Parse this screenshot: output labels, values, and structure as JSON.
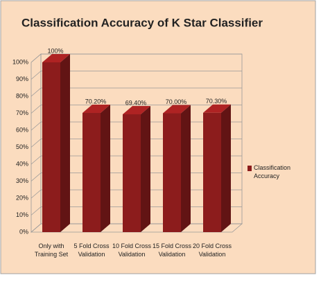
{
  "chart_data": {
    "type": "bar3d",
    "title": "Classification Accuracy of K Star Classifier",
    "categories": [
      "Only with Training Set",
      "5 Fold Cross Validation",
      "10 Fold Cross Validation",
      "15 Fold Cross Validation",
      "20 Fold Cross Validation"
    ],
    "series": [
      {
        "name": "Classification Accuracy",
        "color": "#8c1c1c",
        "values": [
          100,
          70.2,
          69.4,
          70,
          70.3
        ],
        "value_labels": [
          "100%",
          "70.20%",
          "69.40%",
          "70.00%",
          "70.30%"
        ]
      }
    ],
    "ylim": [
      0,
      100
    ],
    "yticks": [
      {
        "value": 0,
        "label": "0%"
      },
      {
        "value": 10,
        "label": "10%"
      },
      {
        "value": 20,
        "label": "20%"
      },
      {
        "value": 30,
        "label": "30%"
      },
      {
        "value": 40,
        "label": "40%"
      },
      {
        "value": 50,
        "label": "50%"
      },
      {
        "value": 60,
        "label": "60%"
      },
      {
        "value": 70,
        "label": "70%"
      },
      {
        "value": 80,
        "label": "80%"
      },
      {
        "value": 90,
        "label": "90%"
      },
      {
        "value": 100,
        "label": "100%"
      }
    ],
    "grid": true,
    "legend": "right",
    "background": "#fbdcbf"
  }
}
